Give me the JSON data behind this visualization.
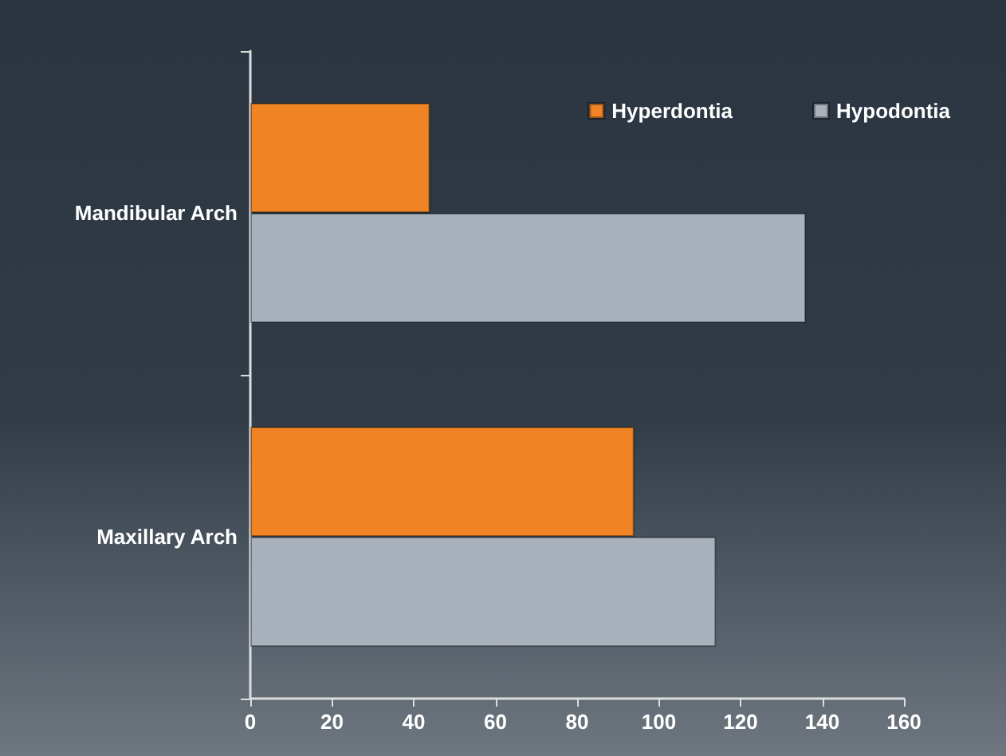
{
  "chart_data": {
    "type": "bar",
    "orientation": "horizontal",
    "categories": [
      "Mandibular Arch",
      "Maxillary Arch"
    ],
    "series": [
      {
        "name": "Hyperdontia",
        "color": "#f08424",
        "values": [
          44,
          94
        ]
      },
      {
        "name": "Hypodontia",
        "color": "#a9b1bc",
        "values": [
          136,
          114
        ]
      }
    ],
    "xlim": [
      0,
      160
    ],
    "xticks": [
      0,
      20,
      40,
      60,
      80,
      100,
      120,
      140,
      160
    ],
    "grid": false,
    "legend": "top right"
  }
}
